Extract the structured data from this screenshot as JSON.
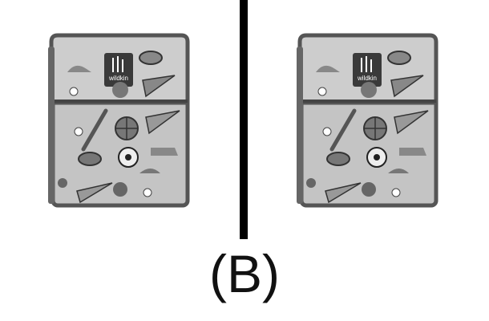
{
  "panel_label": "(B)",
  "colors": {
    "background": "#ffffff",
    "divider": "#000000",
    "bag_body": "#c8c8c8",
    "bag_trim": "#555555"
  },
  "images": [
    {
      "name": "lunch-bag-left",
      "depicts": "grey sports-print insulated lunch bag with Wildkin label"
    },
    {
      "name": "lunch-bag-right",
      "depicts": "grey sports-print insulated lunch bag with Wildkin label"
    }
  ]
}
